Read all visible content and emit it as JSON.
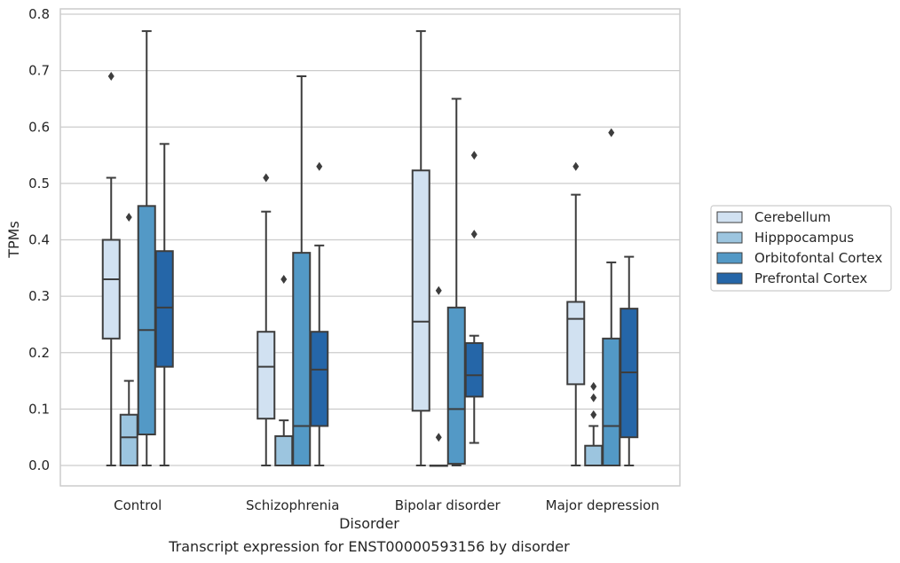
{
  "caption": "Transcript expression for ENST00000593156 by disorder",
  "chart_data": {
    "type": "box",
    "title": "",
    "xlabel": "Disorder",
    "ylabel": "TPMs",
    "ylim": [
      -0.04,
      0.81
    ],
    "yticks": [
      "0.0",
      "0.1",
      "0.2",
      "0.3",
      "0.4",
      "0.5",
      "0.6",
      "0.7",
      "0.8"
    ],
    "grid": "horizontal",
    "legend_position": "right",
    "categories": [
      "Control",
      "Schizophrenia",
      "Bipolar disorder",
      "Major depression"
    ],
    "series": [
      {
        "name": "Cerebellum",
        "color": "#d1e1f1",
        "boxes": [
          {
            "whislo": 0.0,
            "q1": 0.225,
            "med": 0.33,
            "q3": 0.4,
            "whishi": 0.51,
            "fliers": [
              0.69
            ]
          },
          {
            "whislo": 0.0,
            "q1": 0.083,
            "med": 0.175,
            "q3": 0.237,
            "whishi": 0.45,
            "fliers": [
              0.51
            ]
          },
          {
            "whislo": 0.0,
            "q1": 0.097,
            "med": 0.255,
            "q3": 0.523,
            "whishi": 0.77,
            "fliers": []
          },
          {
            "whislo": 0.0,
            "q1": 0.144,
            "med": 0.26,
            "q3": 0.29,
            "whishi": 0.48,
            "fliers": [
              0.53
            ]
          }
        ]
      },
      {
        "name": "Hipppocampus",
        "color": "#9cc5df",
        "boxes": [
          {
            "whislo": 0.0,
            "q1": 0.0,
            "med": 0.05,
            "q3": 0.09,
            "whishi": 0.15,
            "fliers": [
              0.44
            ]
          },
          {
            "whislo": 0.0,
            "q1": 0.0,
            "med": 0.0,
            "q3": 0.052,
            "whishi": 0.08,
            "fliers": [
              0.33
            ]
          },
          {
            "whislo": 0.0,
            "q1": 0.0,
            "med": 0.0,
            "q3": 0.0,
            "whishi": 0.0,
            "fliers": [
              0.05,
              0.31
            ]
          },
          {
            "whislo": 0.0,
            "q1": 0.0,
            "med": 0.0,
            "q3": 0.035,
            "whishi": 0.07,
            "fliers": [
              0.09,
              0.12,
              0.14
            ]
          }
        ]
      },
      {
        "name": "Orbitofontal Cortex",
        "color": "#5399c6",
        "boxes": [
          {
            "whislo": 0.0,
            "q1": 0.055,
            "med": 0.24,
            "q3": 0.46,
            "whishi": 0.77,
            "fliers": []
          },
          {
            "whislo": 0.0,
            "q1": 0.0,
            "med": 0.07,
            "q3": 0.377,
            "whishi": 0.69,
            "fliers": []
          },
          {
            "whislo": 0.0,
            "q1": 0.003,
            "med": 0.1,
            "q3": 0.28,
            "whishi": 0.65,
            "fliers": []
          },
          {
            "whislo": 0.0,
            "q1": 0.0,
            "med": 0.07,
            "q3": 0.225,
            "whishi": 0.36,
            "fliers": [
              0.59
            ]
          }
        ]
      },
      {
        "name": "Prefrontal Cortex",
        "color": "#2566a8",
        "boxes": [
          {
            "whislo": 0.0,
            "q1": 0.175,
            "med": 0.28,
            "q3": 0.38,
            "whishi": 0.57,
            "fliers": []
          },
          {
            "whislo": 0.0,
            "q1": 0.07,
            "med": 0.17,
            "q3": 0.237,
            "whishi": 0.39,
            "fliers": [
              0.53
            ]
          },
          {
            "whislo": 0.04,
            "q1": 0.122,
            "med": 0.16,
            "q3": 0.217,
            "whishi": 0.23,
            "fliers": [
              0.41,
              0.55
            ]
          },
          {
            "whislo": 0.0,
            "q1": 0.05,
            "med": 0.165,
            "q3": 0.278,
            "whishi": 0.37,
            "fliers": []
          }
        ]
      }
    ]
  }
}
